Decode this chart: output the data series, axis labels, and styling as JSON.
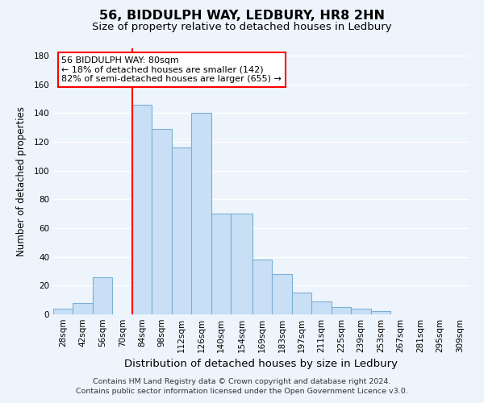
{
  "title": "56, BIDDULPH WAY, LEDBURY, HR8 2HN",
  "subtitle": "Size of property relative to detached houses in Ledbury",
  "xlabel": "Distribution of detached houses by size in Ledbury",
  "ylabel": "Number of detached properties",
  "bar_color": "#c8dff5",
  "bar_edge_color": "#7bafd4",
  "vline_color": "red",
  "vline_x_index": 4,
  "categories": [
    "28sqm",
    "42sqm",
    "56sqm",
    "70sqm",
    "84sqm",
    "98sqm",
    "112sqm",
    "126sqm",
    "140sqm",
    "154sqm",
    "169sqm",
    "183sqm",
    "197sqm",
    "211sqm",
    "225sqm",
    "239sqm",
    "253sqm",
    "267sqm",
    "281sqm",
    "295sqm",
    "309sqm"
  ],
  "bin_edges": [
    28,
    42,
    56,
    70,
    84,
    98,
    112,
    126,
    140,
    154,
    169,
    183,
    197,
    211,
    225,
    239,
    253,
    267,
    281,
    295,
    309,
    323
  ],
  "values": [
    4,
    8,
    26,
    0,
    146,
    129,
    116,
    140,
    70,
    70,
    38,
    28,
    15,
    9,
    5,
    4,
    2,
    0,
    0,
    0,
    0
  ],
  "ylim": [
    0,
    185
  ],
  "yticks": [
    0,
    20,
    40,
    60,
    80,
    100,
    120,
    140,
    160,
    180
  ],
  "annotation_title": "56 BIDDULPH WAY: 80sqm",
  "annotation_line1": "← 18% of detached houses are smaller (142)",
  "annotation_line2": "82% of semi-detached houses are larger (655) →",
  "annotation_box_color": "white",
  "annotation_border_color": "red",
  "footer1": "Contains HM Land Registry data © Crown copyright and database right 2024.",
  "footer2": "Contains public sector information licensed under the Open Government Licence v3.0.",
  "background_color": "#eef4fc",
  "grid_color": "#ffffff",
  "title_fontsize": 11.5,
  "subtitle_fontsize": 9.5,
  "xlabel_fontsize": 9.5,
  "ylabel_fontsize": 8.5,
  "tick_fontsize": 7.5,
  "annot_fontsize": 8.0,
  "footer_fontsize": 6.8
}
